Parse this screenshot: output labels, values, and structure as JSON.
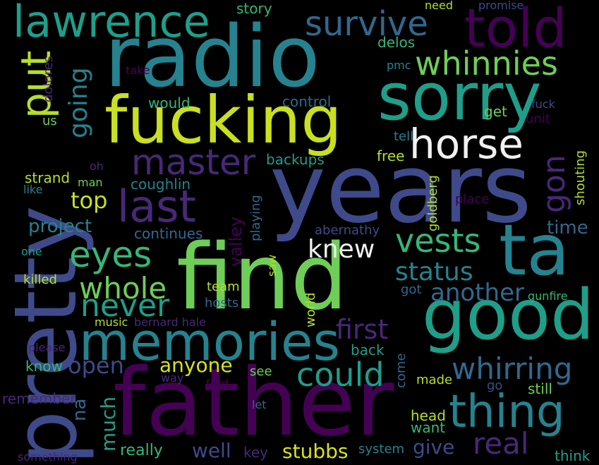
{
  "background": "#000000",
  "palette": {
    "purple": "#440154",
    "violet": "#482878",
    "indigo": "#3e4a89",
    "blue": "#31688e",
    "teal": "#26828e",
    "cyan": "#1f9e89",
    "green": "#35b779",
    "lime": "#6ece58",
    "yellowgreen": "#b5de2b",
    "yellow": "#d8e219"
  },
  "words": [
    {
      "id": "radio",
      "text": "radio",
      "color": "#26828e"
    },
    {
      "id": "years",
      "text": "years",
      "color": "#3e4a89"
    },
    {
      "id": "father",
      "text": "father",
      "color": "#440154"
    },
    {
      "id": "find",
      "text": "find",
      "color": "#6ece58"
    },
    {
      "id": "pretty",
      "text": "pretty",
      "color": "#3e4a89"
    },
    {
      "id": "fucking",
      "text": "fucking",
      "color": "#c8e020"
    },
    {
      "id": "sorry",
      "text": "sorry",
      "color": "#1f9e89"
    },
    {
      "id": "good",
      "text": "good",
      "color": "#1f9e89"
    },
    {
      "id": "ta",
      "text": "ta",
      "color": "#26828e"
    },
    {
      "id": "memories",
      "text": "memories",
      "color": "#26828e"
    },
    {
      "id": "told",
      "text": "told",
      "color": "#440154"
    },
    {
      "id": "lawrence",
      "text": "lawrence",
      "color": "#1f9e89"
    },
    {
      "id": "thing",
      "text": "thing",
      "color": "#26828e"
    },
    {
      "id": "horse",
      "text": "horse",
      "color": "#f1f1f1"
    },
    {
      "id": "last",
      "text": "last",
      "color": "#482878"
    },
    {
      "id": "master",
      "text": "master",
      "color": "#482878"
    },
    {
      "id": "survive",
      "text": "survive",
      "color": "#31688e"
    },
    {
      "id": "whinnies",
      "text": "whinnies",
      "color": "#6ece58"
    },
    {
      "id": "put",
      "text": "put",
      "color": "#b5de2b"
    },
    {
      "id": "eyes",
      "text": "eyes",
      "color": "#35b779"
    },
    {
      "id": "vests",
      "text": "vests",
      "color": "#35b779"
    },
    {
      "id": "whole",
      "text": "whole",
      "color": "#6ece58"
    },
    {
      "id": "never",
      "text": "never",
      "color": "#1f9e89"
    },
    {
      "id": "could",
      "text": "could",
      "color": "#1f9e89"
    },
    {
      "id": "whirring",
      "text": "whirring",
      "color": "#31688e"
    },
    {
      "id": "real",
      "text": "real",
      "color": "#482878"
    },
    {
      "id": "status",
      "text": "status",
      "color": "#26828e"
    },
    {
      "id": "another",
      "text": "another",
      "color": "#31688e"
    },
    {
      "id": "knew",
      "text": "knew",
      "color": "#f1f1f1"
    },
    {
      "id": "first",
      "text": "first",
      "color": "#482878"
    },
    {
      "id": "open",
      "text": "open",
      "color": "#3e4a89"
    },
    {
      "id": "going",
      "text": "going",
      "color": "#26828e"
    },
    {
      "id": "gon",
      "text": "gon",
      "color": "#482878"
    },
    {
      "id": "top",
      "text": "top",
      "color": "#c8e020"
    },
    {
      "id": "project",
      "text": "project",
      "color": "#26828e"
    },
    {
      "id": "anyone",
      "text": "anyone",
      "color": "#d8e219"
    },
    {
      "id": "stubbs",
      "text": "stubbs",
      "color": "#d8e219"
    },
    {
      "id": "give",
      "text": "give",
      "color": "#3e4a89"
    },
    {
      "id": "much",
      "text": "much",
      "color": "#1f9e89"
    },
    {
      "id": "na",
      "text": "na",
      "color": "#31688e"
    },
    {
      "id": "well",
      "text": "well",
      "color": "#3e4a89"
    },
    {
      "id": "time",
      "text": "time",
      "color": "#31688e"
    },
    {
      "id": "valley",
      "text": "valley",
      "color": "#440154"
    },
    {
      "id": "coughlin",
      "text": "coughlin",
      "color": "#26828e"
    },
    {
      "id": "continues",
      "text": "continues",
      "color": "#31688e"
    },
    {
      "id": "abernathy",
      "text": "abernathy",
      "color": "#3e4a89"
    },
    {
      "id": "backups",
      "text": "backups",
      "color": "#1f9e89"
    },
    {
      "id": "control",
      "text": "control",
      "color": "#31688e"
    },
    {
      "id": "would",
      "text": "would",
      "color": "#35b779"
    },
    {
      "id": "story",
      "text": "story",
      "color": "#35b779"
    },
    {
      "id": "need",
      "text": "need",
      "color": "#b5de2b"
    },
    {
      "id": "promise",
      "text": "promise",
      "color": "#3e4a89"
    },
    {
      "id": "delos",
      "text": "delos",
      "color": "#35b779"
    },
    {
      "id": "pmc",
      "text": "pmc",
      "color": "#26828e"
    },
    {
      "id": "take",
      "text": "take",
      "color": "#440154"
    },
    {
      "id": "dolores",
      "text": "dolores",
      "color": "#482878"
    },
    {
      "id": "us",
      "text": "us",
      "color": "#6ece58"
    },
    {
      "id": "tell",
      "text": "tell",
      "color": "#26828e"
    },
    {
      "id": "free",
      "text": "free",
      "color": "#b5de2b"
    },
    {
      "id": "get",
      "text": "get",
      "color": "#6ece58"
    },
    {
      "id": "fuck",
      "text": "fuck",
      "color": "#3e4a89"
    },
    {
      "id": "unit",
      "text": "unit",
      "color": "#440154"
    },
    {
      "id": "shouting",
      "text": "shouting",
      "color": "#b5de2b"
    },
    {
      "id": "oh",
      "text": "oh",
      "color": "#482878"
    },
    {
      "id": "man",
      "text": "man",
      "color": "#6ece58"
    },
    {
      "id": "strand",
      "text": "strand",
      "color": "#b5de2b"
    },
    {
      "id": "like",
      "text": "like",
      "color": "#26828e"
    },
    {
      "id": "goldberg",
      "text": "goldberg",
      "color": "#b5de2b"
    },
    {
      "id": "place",
      "text": "place",
      "color": "#440154"
    },
    {
      "id": "playing",
      "text": "playing",
      "color": "#31688e"
    },
    {
      "id": "one",
      "text": "one",
      "color": "#1f9e89"
    },
    {
      "id": "saw",
      "text": "saw",
      "color": "#b5de2b"
    },
    {
      "id": "killed",
      "text": "killed",
      "color": "#b5de2b"
    },
    {
      "id": "team",
      "text": "team",
      "color": "#b5de2b"
    },
    {
      "id": "hosts",
      "text": "hosts",
      "color": "#31688e"
    },
    {
      "id": "world",
      "text": "world",
      "color": "#b5de2b"
    },
    {
      "id": "got",
      "text": "got",
      "color": "#31688e"
    },
    {
      "id": "gunfire",
      "text": "gunfire",
      "color": "#35b779"
    },
    {
      "id": "music",
      "text": "music",
      "color": "#b5de2b"
    },
    {
      "id": "bernard-hale",
      "text": "bernard hale",
      "color": "#482878"
    },
    {
      "id": "please",
      "text": "please",
      "color": "#482878"
    },
    {
      "id": "back",
      "text": "back",
      "color": "#1f9e89"
    },
    {
      "id": "know",
      "text": "know",
      "color": "#35b779"
    },
    {
      "id": "see",
      "text": "see",
      "color": "#6ece58"
    },
    {
      "id": "way",
      "text": "way",
      "color": "#482878"
    },
    {
      "id": "ford",
      "text": "ford",
      "color": "#440154"
    },
    {
      "id": "come",
      "text": "come",
      "color": "#31688e"
    },
    {
      "id": "made",
      "text": "made",
      "color": "#b5de2b"
    },
    {
      "id": "go",
      "text": "go",
      "color": "#3e4a89"
    },
    {
      "id": "still",
      "text": "still",
      "color": "#6ece58"
    },
    {
      "id": "remember",
      "text": "remember",
      "color": "#482878"
    },
    {
      "id": "let",
      "text": "let",
      "color": "#31688e"
    },
    {
      "id": "head",
      "text": "head",
      "color": "#b5de2b"
    },
    {
      "id": "want",
      "text": "want",
      "color": "#35b779"
    },
    {
      "id": "really",
      "text": "really",
      "color": "#35b779"
    },
    {
      "id": "key",
      "text": "key",
      "color": "#482878"
    },
    {
      "id": "system",
      "text": "system",
      "color": "#26828e"
    },
    {
      "id": "think",
      "text": "think",
      "color": "#1f9e89"
    },
    {
      "id": "something",
      "text": "something",
      "color": "#482878"
    }
  ]
}
